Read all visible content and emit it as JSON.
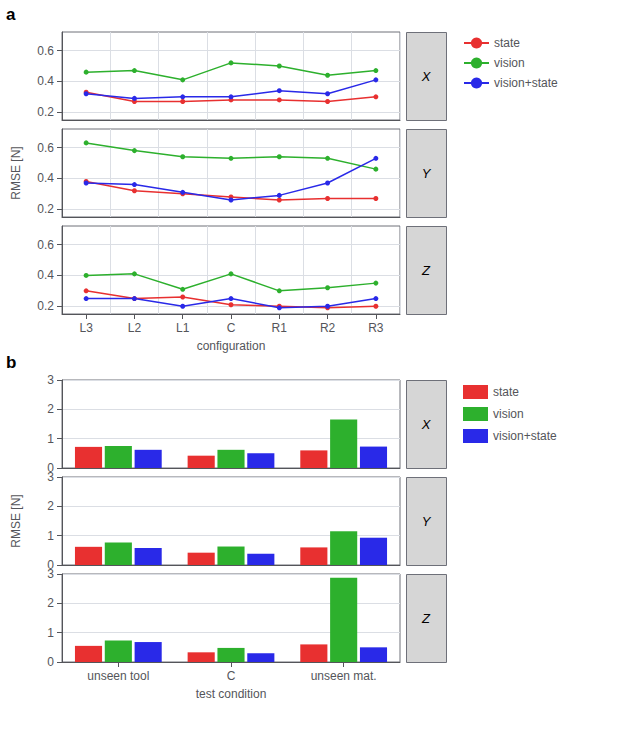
{
  "chart_data": [
    {
      "type": "line",
      "title": "X",
      "annotations": [
        "a"
      ],
      "legend": "upper right",
      "categories": [
        "L3",
        "L2",
        "L1",
        "C",
        "R1",
        "R2",
        "R3"
      ],
      "series": [
        {
          "name": "state",
          "color": "#E83030",
          "values": [
            0.33,
            0.27,
            0.27,
            0.28,
            0.28,
            0.27,
            0.3
          ]
        },
        {
          "name": "vision",
          "color": "#2DB02D",
          "values": [
            0.46,
            0.47,
            0.41,
            0.52,
            0.5,
            0.44,
            0.47
          ]
        },
        {
          "name": "vision+state",
          "color": "#2929E8",
          "values": [
            0.32,
            0.29,
            0.3,
            0.3,
            0.34,
            0.32,
            0.41
          ]
        }
      ],
      "ylim": [
        0.15,
        0.72
      ],
      "yticks": [
        0.2,
        0.4,
        0.6
      ],
      "grid": true,
      "marker": "circle",
      "tick_labels": "y"
    },
    {
      "type": "line",
      "title": "Y",
      "ylabel": "RMSE [N]",
      "categories": [
        "L3",
        "L2",
        "L1",
        "C",
        "R1",
        "R2",
        "R3"
      ],
      "series": [
        {
          "name": "state",
          "color": "#E83030",
          "values": [
            0.38,
            0.32,
            0.3,
            0.28,
            0.26,
            0.27,
            0.27
          ]
        },
        {
          "name": "vision",
          "color": "#2DB02D",
          "values": [
            0.63,
            0.58,
            0.54,
            0.53,
            0.54,
            0.53,
            0.46
          ]
        },
        {
          "name": "vision+state",
          "color": "#2929E8",
          "values": [
            0.37,
            0.36,
            0.31,
            0.26,
            0.29,
            0.37,
            0.53
          ]
        }
      ],
      "ylim": [
        0.15,
        0.72
      ],
      "yticks": [
        0.2,
        0.4,
        0.6
      ],
      "grid": true,
      "marker": "circle",
      "tick_labels": "y"
    },
    {
      "type": "line",
      "title": "Z",
      "xlabel": "configuration",
      "categories": [
        "L3",
        "L2",
        "L1",
        "C",
        "R1",
        "R2",
        "R3"
      ],
      "series": [
        {
          "name": "state",
          "color": "#E83030",
          "values": [
            0.3,
            0.25,
            0.26,
            0.21,
            0.2,
            0.19,
            0.2
          ]
        },
        {
          "name": "vision",
          "color": "#2DB02D",
          "values": [
            0.4,
            0.41,
            0.31,
            0.41,
            0.3,
            0.32,
            0.35
          ]
        },
        {
          "name": "vision+state",
          "color": "#2929E8",
          "values": [
            0.25,
            0.25,
            0.2,
            0.25,
            0.19,
            0.2,
            0.25
          ]
        }
      ],
      "ylim": [
        0.15,
        0.72
      ],
      "yticks": [
        0.2,
        0.4,
        0.6
      ],
      "grid": true,
      "marker": "circle"
    },
    {
      "type": "bar",
      "title": "X",
      "annotations": [
        "b"
      ],
      "legend": "upper right",
      "categories": [
        "unseen tool",
        "C",
        "unseen mat."
      ],
      "series": [
        {
          "name": "state",
          "color": "#E83030",
          "values": [
            0.72,
            0.42,
            0.6
          ]
        },
        {
          "name": "vision",
          "color": "#2DB02D",
          "values": [
            0.75,
            0.62,
            1.65
          ]
        },
        {
          "name": "vision+state",
          "color": "#2929E8",
          "values": [
            0.62,
            0.5,
            0.73
          ]
        }
      ],
      "ylim": [
        0,
        3.0
      ],
      "yticks": [
        0,
        1,
        2,
        3
      ],
      "grid": "y",
      "tick_labels": "y"
    },
    {
      "type": "bar",
      "title": "Y",
      "ylabel": "RMSE [N]",
      "categories": [
        "unseen tool",
        "C",
        "unseen mat."
      ],
      "series": [
        {
          "name": "state",
          "color": "#E83030",
          "values": [
            0.62,
            0.42,
            0.6
          ]
        },
        {
          "name": "vision",
          "color": "#2DB02D",
          "values": [
            0.77,
            0.63,
            1.15
          ]
        },
        {
          "name": "vision+state",
          "color": "#2929E8",
          "values": [
            0.58,
            0.38,
            0.93
          ]
        }
      ],
      "ylim": [
        0,
        3.0
      ],
      "yticks": [
        0,
        1,
        2,
        3
      ],
      "grid": "y",
      "tick_labels": "y"
    },
    {
      "type": "bar",
      "title": "Z",
      "xlabel": "test condition",
      "categories": [
        "unseen tool",
        "C",
        "unseen mat."
      ],
      "series": [
        {
          "name": "state",
          "color": "#E83030",
          "values": [
            0.55,
            0.33,
            0.6
          ]
        },
        {
          "name": "vision",
          "color": "#2DB02D",
          "values": [
            0.73,
            0.48,
            2.87
          ]
        },
        {
          "name": "vision+state",
          "color": "#2929E8",
          "values": [
            0.68,
            0.3,
            0.5
          ]
        }
      ],
      "ylim": [
        0,
        3.0
      ],
      "yticks": [
        0,
        1,
        2,
        3
      ],
      "grid": "y"
    }
  ]
}
